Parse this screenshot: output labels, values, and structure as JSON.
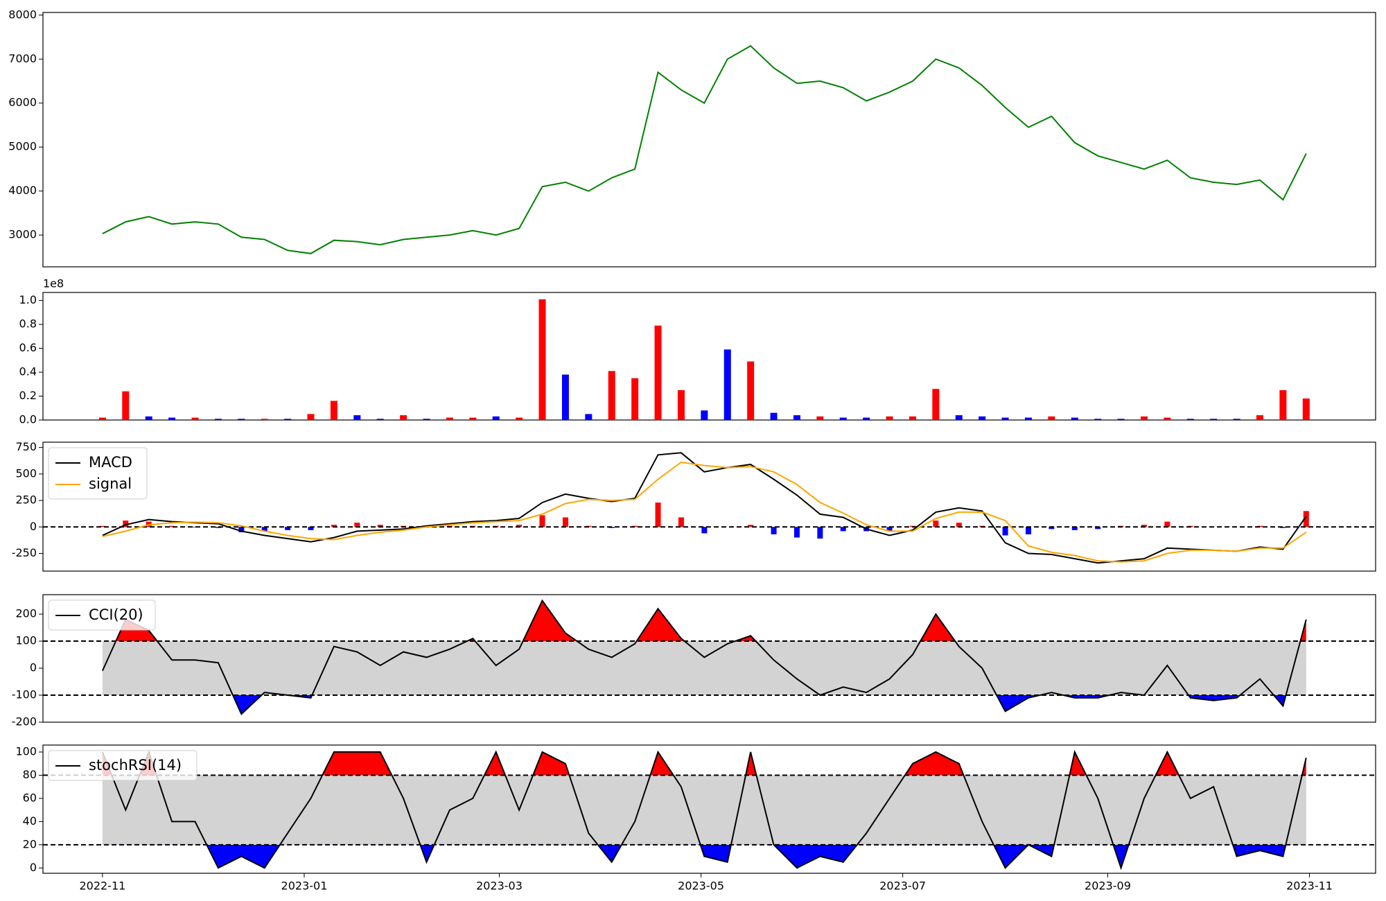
{
  "chart_data": [
    {
      "type": "line",
      "x": [
        "2022-11-01",
        "2022-11-08",
        "2022-11-15",
        "2022-11-22",
        "2022-11-29",
        "2022-12-06",
        "2022-12-13",
        "2022-12-20",
        "2022-12-27",
        "2023-01-03",
        "2023-01-10",
        "2023-01-17",
        "2023-01-24",
        "2023-01-31",
        "2023-02-07",
        "2023-02-14",
        "2023-02-21",
        "2023-02-28",
        "2023-03-07",
        "2023-03-14",
        "2023-03-21",
        "2023-03-28",
        "2023-04-04",
        "2023-04-11",
        "2023-04-18",
        "2023-04-25",
        "2023-05-02",
        "2023-05-09",
        "2023-05-16",
        "2023-05-23",
        "2023-05-30",
        "2023-06-06",
        "2023-06-13",
        "2023-06-20",
        "2023-06-27",
        "2023-07-04",
        "2023-07-11",
        "2023-07-18",
        "2023-07-25",
        "2023-08-01",
        "2023-08-08",
        "2023-08-15",
        "2023-08-22",
        "2023-08-29",
        "2023-09-05",
        "2023-09-12",
        "2023-09-19",
        "2023-09-26",
        "2023-10-03",
        "2023-10-10",
        "2023-10-17",
        "2023-10-24",
        "2023-10-31"
      ],
      "series": [
        {
          "color": "#008000",
          "values": [
            3030,
            3300,
            3420,
            3250,
            3300,
            3250,
            2950,
            2900,
            2650,
            2580,
            2880,
            2850,
            2780,
            2900,
            2950,
            3000,
            3100,
            3000,
            3150,
            4100,
            4200,
            4000,
            4300,
            4500,
            6700,
            6300,
            6000,
            7000,
            7300,
            6800,
            6450,
            6500,
            6350,
            6050,
            6250,
            6500,
            7000,
            6800,
            6400,
            5900,
            5450,
            5700,
            5100,
            4800,
            4650,
            4500,
            4700,
            4300,
            4200,
            4150,
            4250,
            3800,
            4850
          ]
        }
      ],
      "xlim": [
        "2022-10-14",
        "2023-11-21"
      ],
      "ylim": [
        2277,
        8060
      ],
      "yticks": [
        3000,
        4000,
        5000,
        6000,
        7000,
        8000
      ]
    },
    {
      "type": "bar",
      "x": [
        "2022-11-01",
        "2022-11-08",
        "2022-11-15",
        "2022-11-22",
        "2022-11-29",
        "2022-12-06",
        "2022-12-13",
        "2022-12-20",
        "2022-12-27",
        "2023-01-03",
        "2023-01-10",
        "2023-01-17",
        "2023-01-24",
        "2023-01-31",
        "2023-02-07",
        "2023-02-14",
        "2023-02-21",
        "2023-02-28",
        "2023-03-07",
        "2023-03-14",
        "2023-03-21",
        "2023-03-28",
        "2023-04-04",
        "2023-04-11",
        "2023-04-18",
        "2023-04-25",
        "2023-05-02",
        "2023-05-09",
        "2023-05-16",
        "2023-05-23",
        "2023-05-30",
        "2023-06-06",
        "2023-06-13",
        "2023-06-20",
        "2023-06-27",
        "2023-07-04",
        "2023-07-11",
        "2023-07-18",
        "2023-07-25",
        "2023-08-01",
        "2023-08-08",
        "2023-08-15",
        "2023-08-22",
        "2023-08-29",
        "2023-09-05",
        "2023-09-12",
        "2023-09-19",
        "2023-09-26",
        "2023-10-03",
        "2023-10-10",
        "2023-10-17",
        "2023-10-24",
        "2023-10-31"
      ],
      "values": [
        2000000,
        24000000,
        3000000,
        2000000,
        2000000,
        1000000,
        1000000,
        1000000,
        1000000,
        5000000,
        16000000,
        4000000,
        1000000,
        4000000,
        1000000,
        2000000,
        2000000,
        3000000,
        2000000,
        101000000,
        38000000,
        5000000,
        41000000,
        35000000,
        79000000,
        25000000,
        8000000,
        59000000,
        49000000,
        6000000,
        4000000,
        3000000,
        2000000,
        2000000,
        3000000,
        3000000,
        26000000,
        4000000,
        3000000,
        2000000,
        2000000,
        3000000,
        2000000,
        1000000,
        1000000,
        3000000,
        2000000,
        1000000,
        1000000,
        1000000,
        4000000,
        25000000,
        18000000
      ],
      "colors": [
        "red",
        "red",
        "blue",
        "blue",
        "red",
        "blue",
        "blue",
        "red",
        "blue",
        "red",
        "red",
        "blue",
        "blue",
        "red",
        "blue",
        "red",
        "red",
        "blue",
        "red",
        "red",
        "blue",
        "blue",
        "red",
        "red",
        "red",
        "red",
        "blue",
        "blue",
        "red",
        "blue",
        "blue",
        "red",
        "blue",
        "blue",
        "red",
        "red",
        "red",
        "blue",
        "blue",
        "blue",
        "blue",
        "red",
        "blue",
        "blue",
        "blue",
        "red",
        "red",
        "blue",
        "blue",
        "blue",
        "red",
        "red",
        "red"
      ],
      "xlim": [
        "2022-10-14",
        "2023-11-21"
      ],
      "ylim": [
        0,
        106700000
      ],
      "yticks": [
        {
          "value": 0,
          "label": "0.0"
        },
        {
          "value": 20000000,
          "label": "0.2"
        },
        {
          "value": 40000000,
          "label": "0.4"
        },
        {
          "value": 60000000,
          "label": "0.6"
        },
        {
          "value": 80000000,
          "label": "0.8"
        },
        {
          "value": 100000000,
          "label": "1.0"
        }
      ],
      "offset_label": "1e8"
    },
    {
      "type": "macd",
      "x": [
        "2022-11-01",
        "2022-11-08",
        "2022-11-15",
        "2022-11-22",
        "2022-11-29",
        "2022-12-06",
        "2022-12-13",
        "2022-12-20",
        "2022-12-27",
        "2023-01-03",
        "2023-01-10",
        "2023-01-17",
        "2023-01-24",
        "2023-01-31",
        "2023-02-07",
        "2023-02-14",
        "2023-02-21",
        "2023-02-28",
        "2023-03-07",
        "2023-03-14",
        "2023-03-21",
        "2023-03-28",
        "2023-04-04",
        "2023-04-11",
        "2023-04-18",
        "2023-04-25",
        "2023-05-02",
        "2023-05-09",
        "2023-05-16",
        "2023-05-23",
        "2023-05-30",
        "2023-06-06",
        "2023-06-13",
        "2023-06-20",
        "2023-06-27",
        "2023-07-04",
        "2023-07-11",
        "2023-07-18",
        "2023-07-25",
        "2023-08-01",
        "2023-08-08",
        "2023-08-15",
        "2023-08-22",
        "2023-08-29",
        "2023-09-05",
        "2023-09-12",
        "2023-09-19",
        "2023-09-26",
        "2023-10-03",
        "2023-10-10",
        "2023-10-17",
        "2023-10-24",
        "2023-10-31"
      ],
      "series": [
        {
          "name": "MACD",
          "color": "#000000",
          "values": [
            -80,
            20,
            70,
            50,
            40,
            30,
            -40,
            -80,
            -110,
            -140,
            -100,
            -40,
            -30,
            -20,
            10,
            30,
            50,
            60,
            80,
            230,
            310,
            270,
            240,
            270,
            680,
            700,
            520,
            560,
            590,
            450,
            300,
            120,
            90,
            -20,
            -80,
            -30,
            140,
            180,
            150,
            -150,
            -250,
            -260,
            -300,
            -340,
            -320,
            -300,
            -200,
            -210,
            -220,
            -230,
            -190,
            -210,
            100
          ]
        },
        {
          "name": "signal",
          "color": "#ffa500",
          "values": [
            -90,
            -40,
            20,
            40,
            45,
            40,
            10,
            -40,
            -80,
            -110,
            -120,
            -80,
            -50,
            -30,
            0,
            20,
            40,
            50,
            60,
            120,
            220,
            260,
            250,
            260,
            450,
            610,
            580,
            560,
            570,
            520,
            400,
            230,
            130,
            20,
            -40,
            -40,
            80,
            140,
            140,
            60,
            -180,
            -240,
            -270,
            -320,
            -330,
            -320,
            -250,
            -220,
            -220,
            -230,
            -200,
            -200,
            -50
          ]
        }
      ],
      "histogram": {
        "color": "#ff0000",
        "negative_color": "#0000ff",
        "values": [
          10,
          60,
          50,
          10,
          -5,
          -10,
          -50,
          -40,
          -30,
          -30,
          20,
          40,
          20,
          10,
          10,
          10,
          10,
          10,
          20,
          110,
          90,
          10,
          -10,
          10,
          230,
          90,
          -60,
          0,
          20,
          -70,
          -100,
          -110,
          -40,
          -40,
          -40,
          10,
          60,
          40,
          10,
          -80,
          -70,
          -20,
          -30,
          -20,
          10,
          20,
          50,
          10,
          0,
          0,
          10,
          -10,
          150
        ]
      },
      "hlines": [
        0
      ],
      "legend": "upper left",
      "xlim": [
        "2022-10-14",
        "2023-11-21"
      ],
      "ylim": [
        -417,
        800
      ],
      "yticks": [
        -250,
        0,
        250,
        500,
        750
      ]
    },
    {
      "type": "oscillator",
      "x": [
        "2022-11-01",
        "2022-11-08",
        "2022-11-15",
        "2022-11-22",
        "2022-11-29",
        "2022-12-06",
        "2022-12-13",
        "2022-12-20",
        "2022-12-27",
        "2023-01-03",
        "2023-01-10",
        "2023-01-17",
        "2023-01-24",
        "2023-01-31",
        "2023-02-07",
        "2023-02-14",
        "2023-02-21",
        "2023-02-28",
        "2023-03-07",
        "2023-03-14",
        "2023-03-21",
        "2023-03-28",
        "2023-04-04",
        "2023-04-11",
        "2023-04-18",
        "2023-04-25",
        "2023-05-02",
        "2023-05-09",
        "2023-05-16",
        "2023-05-23",
        "2023-05-30",
        "2023-06-06",
        "2023-06-13",
        "2023-06-20",
        "2023-06-27",
        "2023-07-04",
        "2023-07-11",
        "2023-07-18",
        "2023-07-25",
        "2023-08-01",
        "2023-08-08",
        "2023-08-15",
        "2023-08-22",
        "2023-08-29",
        "2023-09-05",
        "2023-09-12",
        "2023-09-19",
        "2023-09-26",
        "2023-10-03",
        "2023-10-10",
        "2023-10-17",
        "2023-10-24",
        "2023-10-31"
      ],
      "series": [
        {
          "name": "CCI(20)",
          "color": "#000000",
          "values": [
            -10,
            180,
            140,
            30,
            30,
            20,
            -170,
            -90,
            -100,
            -110,
            80,
            60,
            10,
            60,
            40,
            70,
            110,
            10,
            70,
            250,
            130,
            70,
            40,
            90,
            220,
            110,
            40,
            90,
            120,
            30,
            -40,
            -100,
            -70,
            -90,
            -40,
            50,
            200,
            80,
            0,
            -160,
            -110,
            -90,
            -110,
            -110,
            -90,
            -100,
            10,
            -110,
            -120,
            -110,
            -40,
            -140,
            180
          ]
        }
      ],
      "bands": [
        -100,
        100
      ],
      "band_color": "#d3d3d3",
      "upper_fill_color": "#ff0000",
      "lower_fill_color": "#0000ff",
      "legend": "upper left",
      "xlim": [
        "2022-10-14",
        "2023-11-21"
      ],
      "ylim": [
        -200,
        272
      ],
      "yticks": [
        -200,
        -100,
        0,
        100,
        200
      ]
    },
    {
      "type": "oscillator",
      "x": [
        "2022-11-01",
        "2022-11-08",
        "2022-11-15",
        "2022-11-22",
        "2022-11-29",
        "2022-12-06",
        "2022-12-13",
        "2022-12-20",
        "2022-12-27",
        "2023-01-03",
        "2023-01-10",
        "2023-01-17",
        "2023-01-24",
        "2023-01-31",
        "2023-02-07",
        "2023-02-14",
        "2023-02-21",
        "2023-02-28",
        "2023-03-07",
        "2023-03-14",
        "2023-03-21",
        "2023-03-28",
        "2023-04-04",
        "2023-04-11",
        "2023-04-18",
        "2023-04-25",
        "2023-05-02",
        "2023-05-09",
        "2023-05-16",
        "2023-05-23",
        "2023-05-30",
        "2023-06-06",
        "2023-06-13",
        "2023-06-20",
        "2023-06-27",
        "2023-07-04",
        "2023-07-11",
        "2023-07-18",
        "2023-07-25",
        "2023-08-01",
        "2023-08-08",
        "2023-08-15",
        "2023-08-22",
        "2023-08-29",
        "2023-09-05",
        "2023-09-12",
        "2023-09-19",
        "2023-09-26",
        "2023-10-03",
        "2023-10-10",
        "2023-10-17",
        "2023-10-24",
        "2023-10-31"
      ],
      "series": [
        {
          "name": "stochRSI(14)",
          "color": "#000000",
          "values": [
            100,
            50,
            100,
            40,
            40,
            0,
            10,
            0,
            30,
            60,
            100,
            100,
            100,
            60,
            5,
            50,
            60,
            100,
            50,
            100,
            90,
            30,
            5,
            40,
            100,
            70,
            10,
            5,
            100,
            20,
            0,
            10,
            5,
            30,
            60,
            90,
            100,
            90,
            40,
            0,
            20,
            10,
            100,
            60,
            0,
            60,
            100,
            60,
            70,
            10,
            15,
            10,
            95
          ]
        }
      ],
      "bands": [
        20,
        80
      ],
      "band_color": "#d3d3d3",
      "upper_fill_color": "#ff0000",
      "lower_fill_color": "#0000ff",
      "legend": "upper left",
      "xlim": [
        "2022-10-14",
        "2023-11-21"
      ],
      "ylim": [
        -4.6,
        106
      ],
      "yticks": [
        0,
        20,
        40,
        60,
        80,
        100
      ],
      "xticks": [
        "2022-11",
        "2023-01",
        "2023-03",
        "2023-05",
        "2023-07",
        "2023-09",
        "2023-11"
      ]
    }
  ]
}
